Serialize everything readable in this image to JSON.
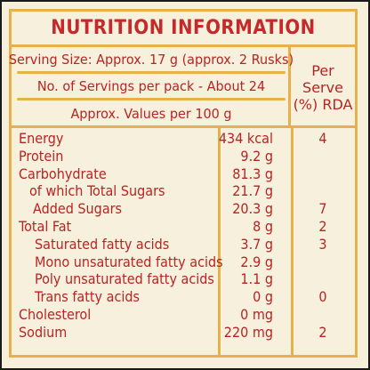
{
  "title": "NUTRITION INFORMATION",
  "header": {
    "serving_size": "Serving Size: Approx. 17 g (approx. 2 Rusks)",
    "servings_per_pack": "No. of Servings per pack - About 24",
    "values_per": "Approx. Values per 100 g",
    "per_serve_line1": "Per",
    "per_serve_line2": "Serve",
    "per_serve_line3": "(%) RDA"
  },
  "rows": [
    {
      "name": "Energy",
      "value": "434 kcal",
      "rda": "4"
    },
    {
      "name": "Protein",
      "value": "9.2 g",
      "rda": ""
    },
    {
      "name": "Carbohydrate",
      "value": "81.3 g",
      "rda": ""
    },
    {
      "name": "of which Total Sugars",
      "value": "21.7 g",
      "rda": ""
    },
    {
      "name": "Added Sugars",
      "value": "20.3 g",
      "rda": "7"
    },
    {
      "name": "Total Fat",
      "value": "8 g",
      "rda": "2"
    },
    {
      "name": "Saturated fatty acids",
      "value": "3.7 g",
      "rda": "3"
    },
    {
      "name": "Mono unsaturated fatty acids",
      "value": "2.9 g",
      "rda": ""
    },
    {
      "name": "Poly unsaturated fatty acids",
      "value": "1.1 g",
      "rda": ""
    },
    {
      "name": "Trans fatty acids",
      "value": "0 g",
      "rda": "0"
    },
    {
      "name": "Cholesterol",
      "value": "0 mg",
      "rda": ""
    },
    {
      "name": "Sodium",
      "value": "220 mg",
      "rda": "2"
    }
  ],
  "colors": {
    "text_red": "#b82424",
    "border_gold": "#e6b04a",
    "background_cream": "#f7f0dc"
  }
}
